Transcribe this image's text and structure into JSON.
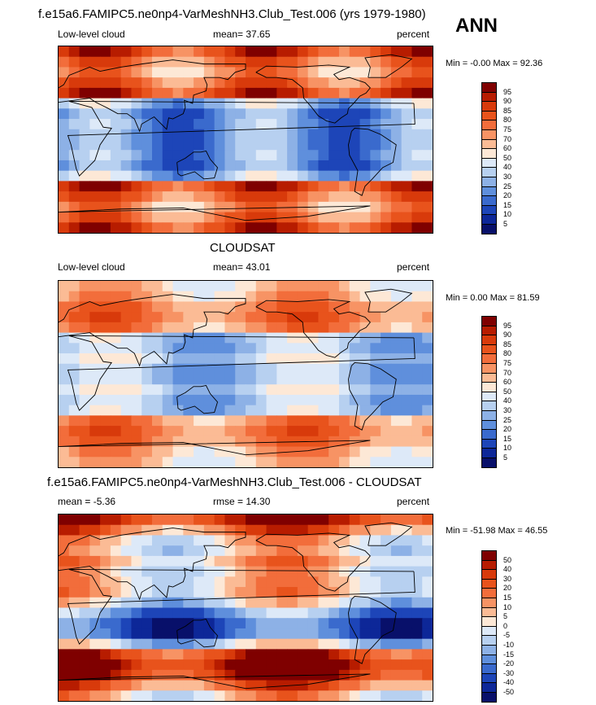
{
  "panels": [
    {
      "title": "f.e15a6.FAMIPC5.ne0np4-VarMeshNH3.Club_Test.006 (yrs 1979-1980)",
      "left_label": "Low-level cloud",
      "mid_label": "mean=  37.65",
      "right_label": "percent",
      "stats": "Min =  -0.00 Max =  92.36",
      "colorbar": {
        "labels": [
          "95",
          "90",
          "85",
          "80",
          "75",
          "70",
          "60",
          "50",
          "40",
          "30",
          "25",
          "20",
          "15",
          "10",
          "5"
        ],
        "colors": [
          "#7f0000",
          "#b71c00",
          "#d83a0b",
          "#e8531c",
          "#f26d3b",
          "#f79364",
          "#fbbb95",
          "#fde8d6",
          "#dde9f8",
          "#b7d0f0",
          "#8db1e6",
          "#5f8fdc",
          "#3a6acd",
          "#1d45b8",
          "#0d2798",
          "#08106a"
        ]
      },
      "type": "model"
    },
    {
      "title": "CLOUDSAT",
      "left_label": "Low-level cloud",
      "mid_label": "mean=  43.01",
      "right_label": "percent",
      "stats": "Min =   0.00 Max =  81.59",
      "colorbar": {
        "labels": [
          "95",
          "90",
          "85",
          "80",
          "75",
          "70",
          "60",
          "50",
          "40",
          "30",
          "25",
          "20",
          "15",
          "10",
          "5"
        ],
        "colors": [
          "#7f0000",
          "#b71c00",
          "#d83a0b",
          "#e8531c",
          "#f26d3b",
          "#f79364",
          "#fbbb95",
          "#fde8d6",
          "#dde9f8",
          "#b7d0f0",
          "#8db1e6",
          "#5f8fdc",
          "#3a6acd",
          "#1d45b8",
          "#0d2798",
          "#08106a"
        ]
      },
      "type": "obs"
    },
    {
      "title": "f.e15a6.FAMIPC5.ne0np4-VarMeshNH3.Club_Test.006 - CLOUDSAT",
      "left_label": "mean =  -5.36",
      "mid_label": "rmse =  14.30",
      "right_label": "percent",
      "stats": "Min = -51.98 Max =  46.55",
      "colorbar": {
        "labels": [
          "50",
          "40",
          "30",
          "20",
          "15",
          "10",
          "5",
          "0",
          "-5",
          "-10",
          "-15",
          "-20",
          "-30",
          "-40",
          "-50"
        ],
        "colors": [
          "#7f0000",
          "#b71c00",
          "#d83a0b",
          "#e8531c",
          "#f26d3b",
          "#f79364",
          "#fbbb95",
          "#fde8d6",
          "#dde9f8",
          "#b7d0f0",
          "#8db1e6",
          "#5f8fdc",
          "#3a6acd",
          "#1d45b8",
          "#0d2798",
          "#08106a"
        ]
      },
      "type": "diff"
    }
  ],
  "season": "ANN"
}
